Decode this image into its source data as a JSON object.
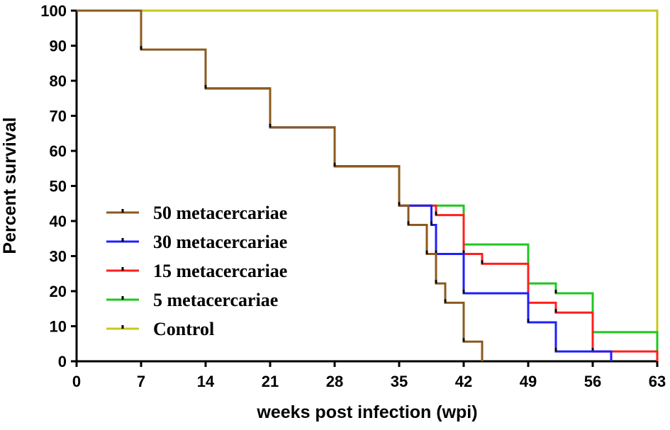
{
  "chart_data": {
    "type": "line",
    "subtype": "kaplan-meier-step",
    "title": "",
    "xlabel": "weeks post infection (wpi)",
    "ylabel": "Percent survival",
    "xlim": [
      0,
      63
    ],
    "ylim": [
      0,
      100
    ],
    "xticks": [
      0,
      7,
      14,
      21,
      28,
      35,
      42,
      49,
      56,
      63
    ],
    "yticks": [
      0,
      10,
      20,
      30,
      40,
      50,
      60,
      70,
      80,
      90,
      100
    ],
    "legend_position": "center-left",
    "series": [
      {
        "name": "Control",
        "legend_label": "Control",
        "color": "#c8c81e",
        "steps": [
          [
            0,
            100
          ],
          [
            63,
            0
          ]
        ]
      },
      {
        "name": "5 metacercariae",
        "legend_label": " 5  metacercariae",
        "color": "#1ec81e",
        "steps": [
          [
            0,
            100
          ],
          [
            7,
            88.9
          ],
          [
            14,
            77.8
          ],
          [
            21,
            66.7
          ],
          [
            28,
            55.6
          ],
          [
            35,
            44.4
          ],
          [
            42,
            33.3
          ],
          [
            49,
            22.2
          ],
          [
            52,
            19.4
          ],
          [
            56,
            8.3
          ],
          [
            63,
            0
          ]
        ]
      },
      {
        "name": "15 metacercariae",
        "legend_label": "15 metacercariae",
        "color": "#ff1e1e",
        "steps": [
          [
            0,
            100
          ],
          [
            7,
            88.9
          ],
          [
            14,
            77.8
          ],
          [
            21,
            66.7
          ],
          [
            28,
            55.6
          ],
          [
            35,
            44.4
          ],
          [
            39,
            41.7
          ],
          [
            42,
            30.6
          ],
          [
            44,
            27.8
          ],
          [
            49,
            16.7
          ],
          [
            52,
            13.9
          ],
          [
            56,
            2.8
          ],
          [
            63,
            0
          ]
        ]
      },
      {
        "name": "30 metacercariae",
        "legend_label": "30 metacercariae",
        "color": "#1e1eff",
        "steps": [
          [
            0,
            100
          ],
          [
            7,
            88.9
          ],
          [
            14,
            77.8
          ],
          [
            21,
            66.7
          ],
          [
            28,
            55.6
          ],
          [
            35,
            44.4
          ],
          [
            38.5,
            38.9
          ],
          [
            39,
            30.6
          ],
          [
            42,
            19.4
          ],
          [
            49,
            11.1
          ],
          [
            52,
            2.8
          ],
          [
            58,
            0
          ]
        ]
      },
      {
        "name": "50 metacercariae",
        "legend_label": "50 metacercariae",
        "color": "#8b5a1e",
        "steps": [
          [
            0,
            100
          ],
          [
            7,
            88.9
          ],
          [
            14,
            77.8
          ],
          [
            21,
            66.7
          ],
          [
            28,
            55.6
          ],
          [
            35,
            44.4
          ],
          [
            36,
            38.9
          ],
          [
            38,
            30.6
          ],
          [
            39,
            22.2
          ],
          [
            40,
            16.7
          ],
          [
            42,
            5.6
          ],
          [
            44,
            0
          ]
        ]
      }
    ],
    "legend_order": [
      "50 metacercariae",
      "30 metacercariae",
      "15 metacercariae",
      "5 metacercariae",
      "Control"
    ]
  }
}
